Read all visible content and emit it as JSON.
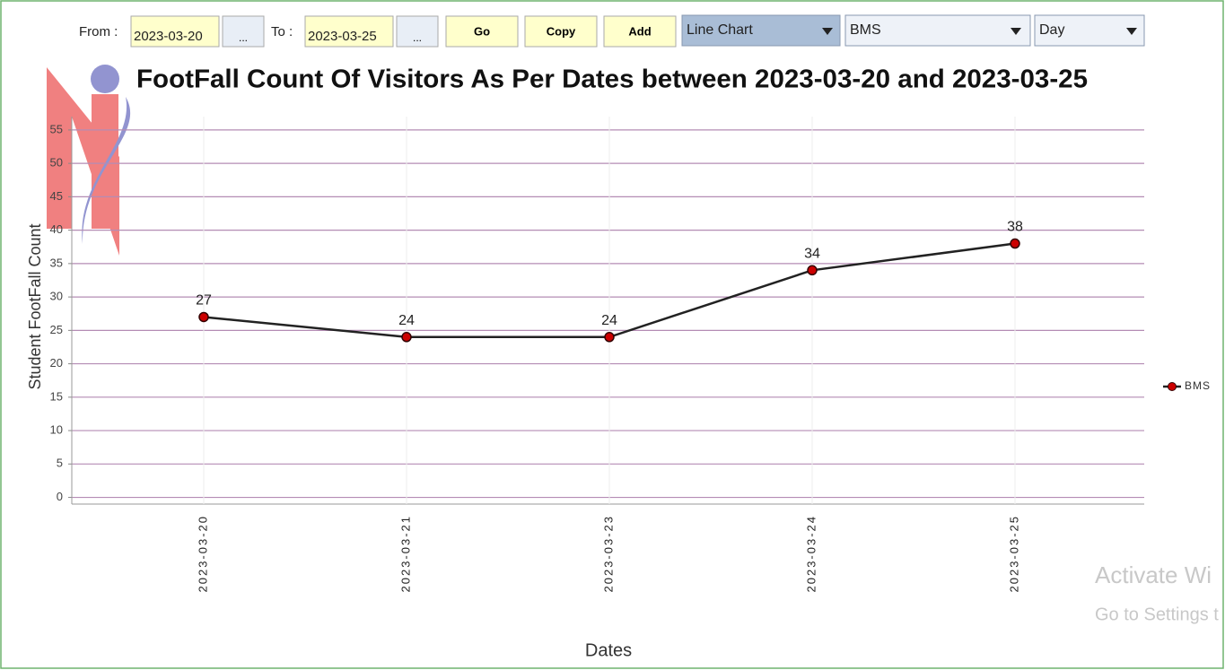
{
  "toolbar": {
    "from_label": "From :",
    "from_value": "2023-03-20",
    "from_button": "...",
    "to_label": "To :",
    "to_value": "2023-03-25",
    "to_button": "...",
    "go": "Go",
    "copy": "Copy",
    "add": "Add",
    "chart_type": "Line Chart",
    "series_select": "BMS",
    "period": "Day"
  },
  "chart_data": {
    "type": "line",
    "title": "FootFall Count Of Visitors As Per Dates between 2023-03-20 and 2023-03-25",
    "xlabel": "Dates",
    "ylabel": "Student FootFall Count",
    "categories": [
      "2023-03-20",
      "2023-03-21",
      "2023-03-23",
      "2023-03-24",
      "2023-03-25"
    ],
    "series": [
      {
        "name": "BMS",
        "color": "#cc0000",
        "values": [
          27,
          24,
          24,
          34,
          38
        ]
      }
    ],
    "ylim": [
      -1,
      57
    ],
    "yticks": [
      0,
      5,
      10,
      15,
      20,
      25,
      30,
      35,
      40,
      45,
      50,
      55
    ],
    "grid": true,
    "legend": "right"
  },
  "watermark": {
    "line1": "Activate Wi",
    "line2": "Go to Settings t"
  }
}
